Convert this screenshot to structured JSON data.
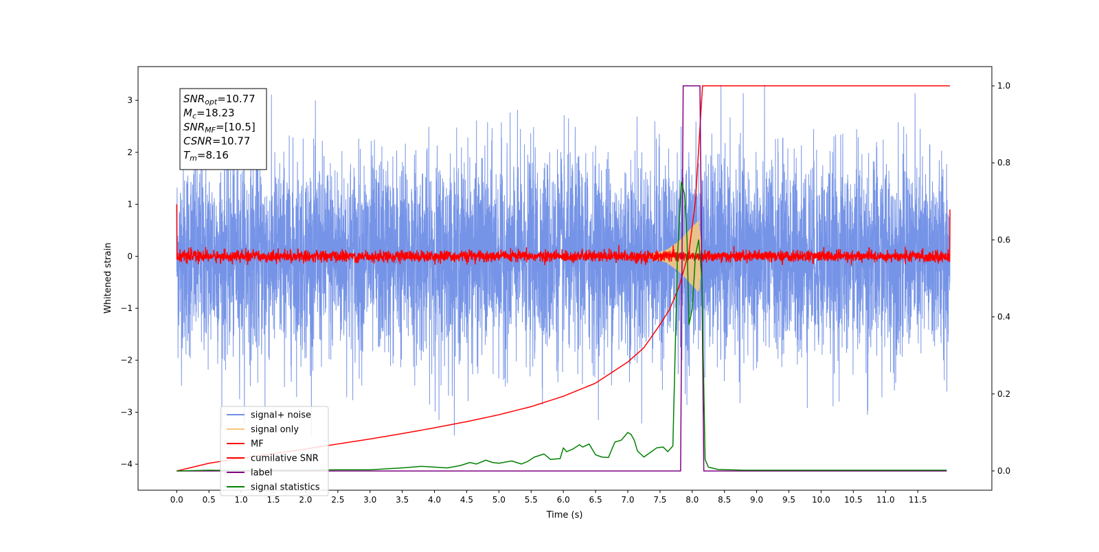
{
  "chart_data": {
    "type": "line",
    "title": "",
    "xlabel": "Time (s)",
    "ylabel_left": "Whitened strain",
    "ylabel_right": "",
    "xlim": [
      -0.6,
      12.65
    ],
    "ylim_left": [
      -4.5,
      3.65
    ],
    "ylim_right": [
      -0.05,
      1.05
    ],
    "x_ticks": [
      0.0,
      0.5,
      1.0,
      1.5,
      2.0,
      2.5,
      3.0,
      3.5,
      4.0,
      4.5,
      5.0,
      5.5,
      6.0,
      6.5,
      7.0,
      7.5,
      8.0,
      8.5,
      9.0,
      9.5,
      10.0,
      10.5,
      11.0,
      11.5
    ],
    "x_tick_labels": [
      "0.0",
      "0.5",
      "1.0",
      "1.5",
      "2.0",
      "2.5",
      "3.0",
      "3.5",
      "4.0",
      "4.5",
      "5.0",
      "5.5",
      "6.0",
      "6.5",
      "7.0",
      "7.5",
      "8.0",
      "8.5",
      "9.0",
      "9.5",
      "10.0",
      "10.5",
      "11.0",
      "11.5"
    ],
    "y_ticks_left": [
      -4,
      -3,
      -2,
      -1,
      0,
      1,
      2,
      3
    ],
    "y_tick_labels_left": [
      "−4",
      "−3",
      "−2",
      "−1",
      "0",
      "1",
      "2",
      "3"
    ],
    "y_ticks_right": [
      0.0,
      0.2,
      0.4,
      0.6,
      0.8,
      1.0
    ],
    "y_tick_labels_right": [
      "0.0",
      "0.2",
      "0.4",
      "0.6",
      "0.8",
      "1.0"
    ],
    "grid": false,
    "legend_position": "lower-left",
    "annotation": {
      "lines": [
        {
          "base": "SNR",
          "sub": "opt",
          "value": "=10.77"
        },
        {
          "base": "M",
          "sub": "c",
          "value": "=18.23"
        },
        {
          "base": "SNR",
          "sub": "MF",
          "value": "=[10.5]"
        },
        {
          "base": "CSNR",
          "sub": "",
          "value": "=10.77"
        },
        {
          "base": "T",
          "sub": "m",
          "value": "=8.16"
        }
      ]
    },
    "series": [
      {
        "name": "signal+ noise",
        "axis": "left",
        "color": "#6f8ee6",
        "description_values": {
          "x_range": [
            0.0,
            12.0
          ],
          "band_low": -1.7,
          "band_high": 1.7,
          "max": 3.3,
          "min": -3.45,
          "spike_at": [
            1.37,
            4.07,
            10.72
          ]
        }
      },
      {
        "name": "signal only",
        "axis": "left",
        "color": "#f5c77e",
        "envelope": {
          "x": [
            7.3,
            7.6,
            7.8,
            7.95,
            8.1,
            8.16
          ],
          "amp": [
            0.02,
            0.12,
            0.3,
            0.5,
            0.7,
            0.0
          ]
        }
      },
      {
        "name": "MF",
        "axis": "left",
        "color": "#ff0000",
        "band": {
          "x_range": [
            0.0,
            12.0
          ],
          "low": -0.12,
          "high": 0.18,
          "start_value": 1.0,
          "end_value": 0.9
        }
      },
      {
        "name": "cumilative SNR",
        "axis": "right",
        "color": "#ff0000",
        "x": [
          0.0,
          0.5,
          1.0,
          1.5,
          2.0,
          2.5,
          3.0,
          3.5,
          4.0,
          4.5,
          5.0,
          5.5,
          6.0,
          6.5,
          7.0,
          7.25,
          7.5,
          7.65,
          7.8,
          7.95,
          8.05,
          8.16,
          12.0
        ],
        "values": [
          0.0,
          0.02,
          0.033,
          0.045,
          0.057,
          0.07,
          0.083,
          0.097,
          0.112,
          0.128,
          0.146,
          0.167,
          0.194,
          0.228,
          0.283,
          0.32,
          0.38,
          0.42,
          0.48,
          0.57,
          0.7,
          1.0,
          1.0
        ]
      },
      {
        "name": "label",
        "axis": "right",
        "color": "#800080",
        "x": [
          0.0,
          7.82,
          7.86,
          8.12,
          8.18,
          11.95
        ],
        "values": [
          0.0,
          0.0,
          1.0,
          1.0,
          0.0,
          0.0
        ]
      },
      {
        "name": "signal statistics",
        "axis": "right",
        "color": "#008000",
        "x": [
          0.0,
          0.5,
          1.0,
          1.5,
          2.0,
          2.5,
          3.0,
          3.5,
          3.8,
          4.0,
          4.2,
          4.4,
          4.55,
          4.65,
          4.8,
          4.9,
          5.0,
          5.2,
          5.35,
          5.45,
          5.55,
          5.7,
          5.8,
          5.95,
          6.0,
          6.05,
          6.15,
          6.25,
          6.3,
          6.4,
          6.5,
          6.6,
          6.7,
          6.8,
          6.9,
          7.0,
          7.05,
          7.1,
          7.15,
          7.25,
          7.35,
          7.45,
          7.55,
          7.62,
          7.7,
          7.77,
          7.83,
          7.88,
          7.92,
          7.95,
          8.0,
          8.05,
          8.1,
          8.15,
          8.2,
          8.25,
          8.4,
          8.8,
          9.5,
          10.5,
          11.5,
          11.95
        ],
        "values": [
          0.0,
          0.002,
          0.001,
          0.002,
          0.002,
          0.003,
          0.003,
          0.008,
          0.012,
          0.01,
          0.008,
          0.014,
          0.022,
          0.018,
          0.028,
          0.022,
          0.02,
          0.026,
          0.018,
          0.025,
          0.036,
          0.044,
          0.03,
          0.032,
          0.06,
          0.05,
          0.057,
          0.068,
          0.062,
          0.07,
          0.042,
          0.036,
          0.035,
          0.075,
          0.08,
          0.1,
          0.095,
          0.08,
          0.052,
          0.036,
          0.048,
          0.06,
          0.062,
          0.05,
          0.065,
          0.55,
          0.75,
          0.72,
          0.6,
          0.38,
          0.42,
          0.56,
          0.6,
          0.5,
          0.03,
          0.01,
          0.004,
          0.002,
          0.002,
          0.002,
          0.002,
          0.002
        ]
      }
    ]
  }
}
